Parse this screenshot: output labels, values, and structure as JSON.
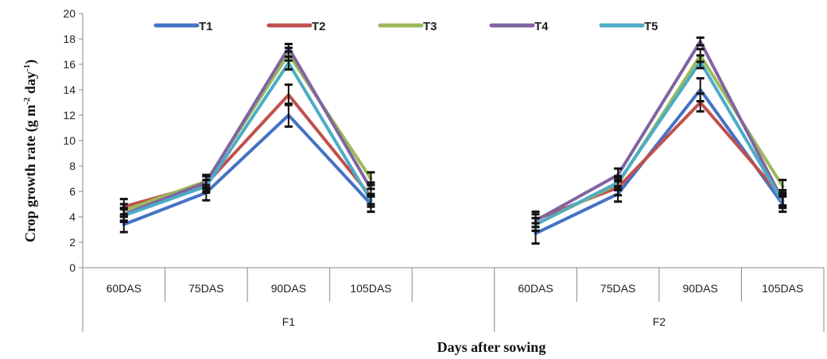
{
  "chart_data": {
    "type": "line",
    "xlabel": "Days after sowing",
    "ylabel": {
      "prefix": "Crop growth rate (g m",
      "sup1": "-2",
      "mid": " day",
      "sup2": "-1",
      "suffix": ")"
    },
    "ylim": [
      0,
      20
    ],
    "yticks": [
      "0",
      "2",
      "4",
      "6",
      "8",
      "10",
      "12",
      "14",
      "16",
      "18",
      "20"
    ],
    "legend_position": "top",
    "groups": [
      {
        "label": "F1",
        "categories": [
          "60DAS",
          "75DAS",
          "90DAS",
          "105DAS"
        ]
      },
      {
        "label": "F2",
        "categories": [
          "60DAS",
          "75DAS",
          "90DAS",
          "105DAS"
        ]
      }
    ],
    "series": [
      {
        "name": "T1",
        "color": "#4472C4",
        "groups": [
          [
            3.4,
            5.9,
            12.0,
            5.0
          ],
          [
            2.7,
            5.8,
            14.0,
            5.0
          ]
        ],
        "errors": [
          [
            0.6,
            0.6,
            0.9,
            0.6
          ],
          [
            0.8,
            0.6,
            0.9,
            0.6
          ]
        ]
      },
      {
        "name": "T2",
        "color": "#C0504D",
        "groups": [
          [
            4.8,
            6.6,
            13.6,
            5.6
          ],
          [
            3.8,
            6.3,
            13.0,
            5.5
          ]
        ],
        "errors": [
          [
            0.6,
            0.6,
            0.8,
            0.6
          ],
          [
            0.6,
            0.6,
            0.7,
            0.6
          ]
        ]
      },
      {
        "name": "T3",
        "color": "#9BBB59",
        "groups": [
          [
            4.5,
            6.8,
            16.8,
            7.0
          ],
          [
            3.4,
            6.6,
            16.7,
            6.4
          ]
        ],
        "errors": [
          [
            0.5,
            0.5,
            0.5,
            0.5
          ],
          [
            0.5,
            0.5,
            0.5,
            0.5
          ]
        ]
      },
      {
        "name": "T4",
        "color": "#8064A2",
        "groups": [
          [
            4.2,
            6.7,
            17.3,
            6.2
          ],
          [
            3.7,
            7.3,
            17.8,
            5.3
          ]
        ],
        "errors": [
          [
            0.5,
            0.5,
            0.3,
            0.5
          ],
          [
            0.5,
            0.5,
            0.3,
            0.5
          ]
        ]
      },
      {
        "name": "T5",
        "color": "#4BACC6",
        "groups": [
          [
            4.1,
            6.4,
            16.1,
            5.3
          ],
          [
            3.4,
            6.7,
            16.2,
            5.2
          ]
        ],
        "errors": [
          [
            0.5,
            0.5,
            0.5,
            0.5
          ],
          [
            0.5,
            0.5,
            0.5,
            0.5
          ]
        ]
      }
    ]
  }
}
